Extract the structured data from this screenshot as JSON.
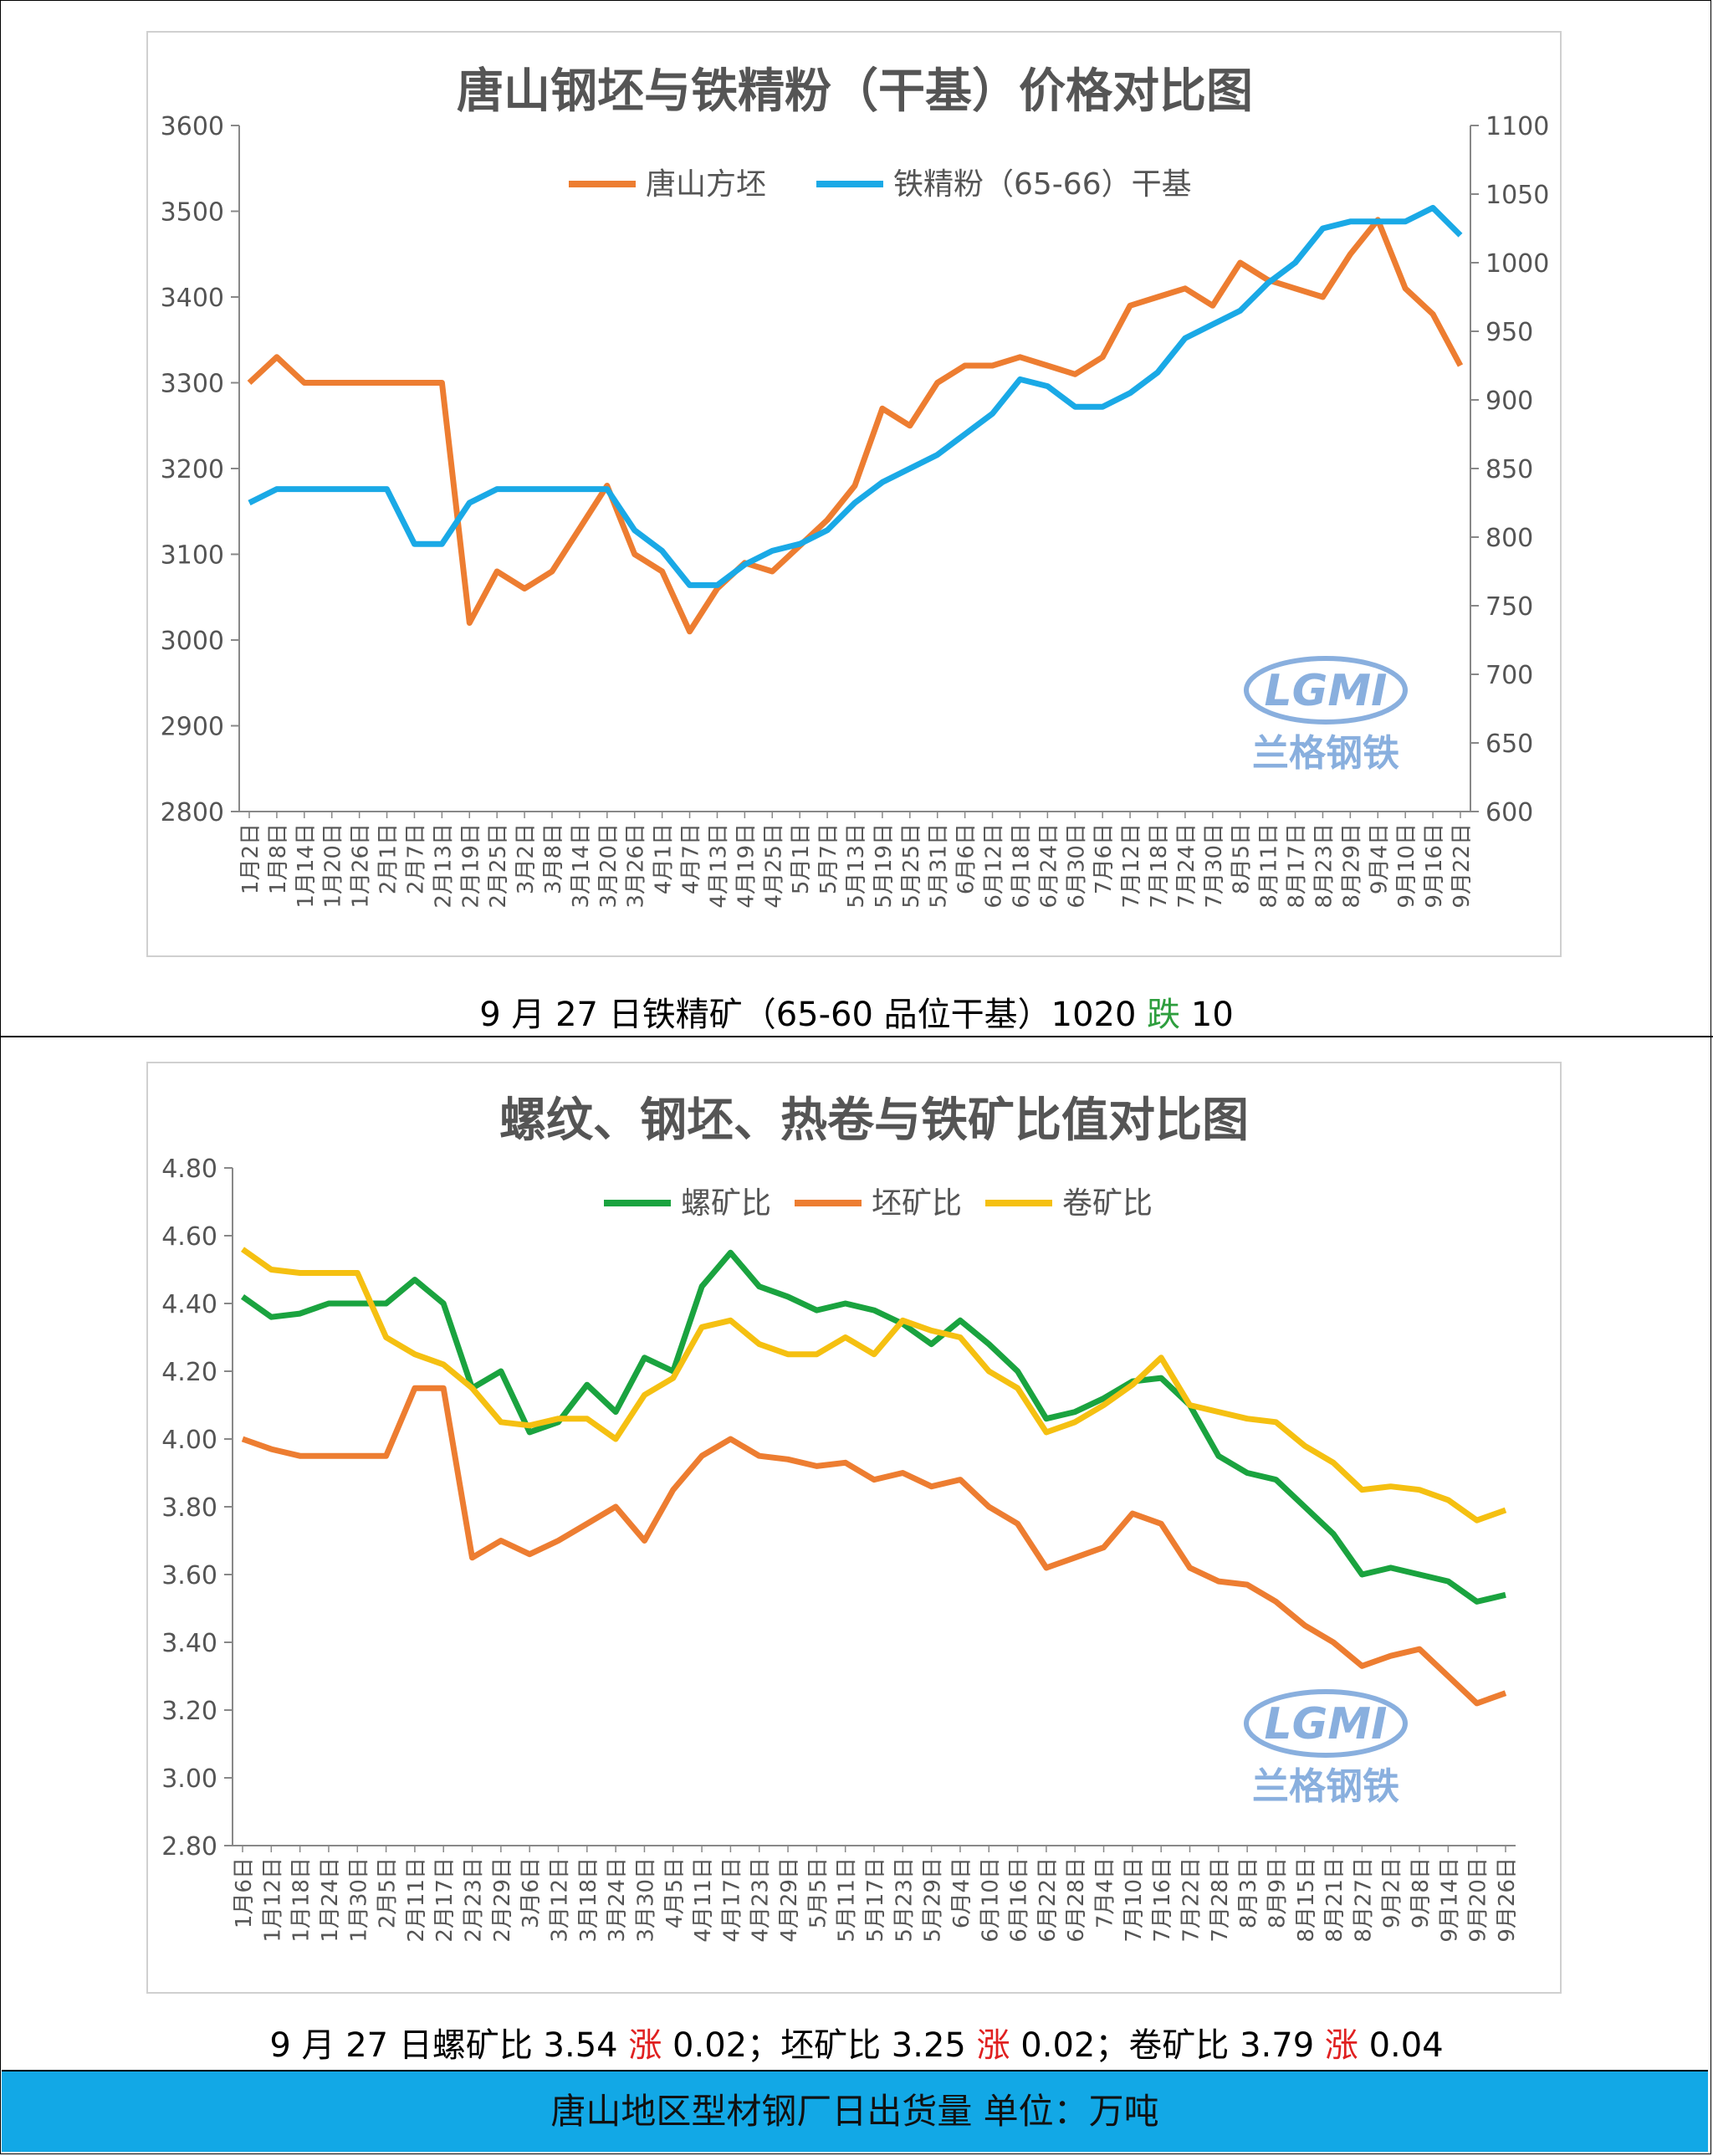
{
  "caption1": {
    "pre": "9 月 27 日铁精矿（65-60 品位干基）1020 ",
    "trend": "跌",
    "post": " 10"
  },
  "caption2": {
    "p1": "9 月 27 日螺矿比 3.54 ",
    "t1": "涨",
    "p2": " 0.02；坯矿比 3.25 ",
    "t2": "涨",
    "p3": " 0.02；卷矿比 3.79 ",
    "t3": "涨",
    "p4": " 0.04"
  },
  "footer": "唐山地区型材钢厂日出货量  单位：万吨",
  "watermark": {
    "logo": "LGMI",
    "name": "兰格钢铁"
  },
  "colors": {
    "orange": "#ed7d31",
    "blue": "#1aa9e6",
    "green": "#1aa33f",
    "yellow": "#f5c011",
    "down": "#2e9e3e",
    "up": "#e02020"
  },
  "chart_data": [
    {
      "type": "line",
      "title": "唐山钢坯与铁精粉（干基）价格对比图",
      "legend": "top",
      "x": [
        "1月2日",
        "1月8日",
        "1月14日",
        "1月20日",
        "1月26日",
        "2月1日",
        "2月7日",
        "2月13日",
        "2月19日",
        "2月25日",
        "3月2日",
        "3月8日",
        "3月14日",
        "3月20日",
        "3月26日",
        "4月1日",
        "4月7日",
        "4月13日",
        "4月19日",
        "4月25日",
        "5月1日",
        "5月7日",
        "5月13日",
        "5月19日",
        "5月25日",
        "5月31日",
        "6月6日",
        "6月12日",
        "6月18日",
        "6月24日",
        "6月30日",
        "7月6日",
        "7月12日",
        "7月18日",
        "7月24日",
        "7月30日",
        "8月5日",
        "8月11日",
        "8月17日",
        "8月23日",
        "8月29日",
        "9月4日",
        "9月10日",
        "9月16日",
        "9月22日"
      ],
      "y_left": {
        "min": 2800,
        "max": 3600,
        "ticks": [
          2800,
          2900,
          3000,
          3100,
          3200,
          3300,
          3400,
          3500,
          3600
        ]
      },
      "y_right": {
        "min": 600,
        "max": 1100,
        "ticks": [
          600,
          650,
          700,
          750,
          800,
          850,
          900,
          950,
          1000,
          1050,
          1100
        ]
      },
      "series": [
        {
          "name": "唐山方坯",
          "axis": "left",
          "color": "#ed7d31",
          "values": [
            3300,
            3330,
            3300,
            3300,
            3300,
            3300,
            3300,
            3300,
            3020,
            3080,
            3060,
            3080,
            3130,
            3180,
            3100,
            3080,
            3010,
            3060,
            3090,
            3080,
            3110,
            3140,
            3180,
            3270,
            3250,
            3300,
            3320,
            3320,
            3330,
            3320,
            3310,
            3330,
            3390,
            3400,
            3410,
            3390,
            3440,
            3420,
            3410,
            3400,
            3450,
            3490,
            3410,
            3380,
            3320
          ]
        },
        {
          "name": "铁精粉（65-66）干基",
          "axis": "right",
          "color": "#1aa9e6",
          "values": [
            825,
            835,
            835,
            835,
            835,
            835,
            795,
            795,
            825,
            835,
            835,
            835,
            835,
            835,
            805,
            790,
            765,
            765,
            780,
            790,
            795,
            805,
            825,
            840,
            850,
            860,
            875,
            890,
            915,
            910,
            895,
            895,
            905,
            920,
            945,
            955,
            965,
            985,
            1000,
            1025,
            1030,
            1030,
            1030,
            1040,
            1020
          ]
        }
      ]
    },
    {
      "type": "line",
      "title": "螺纹、钢坯、热卷与铁矿比值对比图",
      "legend": "top",
      "x": [
        "1月6日",
        "1月12日",
        "1月18日",
        "1月24日",
        "1月30日",
        "2月5日",
        "2月11日",
        "2月17日",
        "2月23日",
        "2月29日",
        "3月6日",
        "3月12日",
        "3月18日",
        "3月24日",
        "3月30日",
        "4月5日",
        "4月11日",
        "4月17日",
        "4月23日",
        "4月29日",
        "5月5日",
        "5月11日",
        "5月17日",
        "5月23日",
        "5月29日",
        "6月4日",
        "6月10日",
        "6月16日",
        "6月22日",
        "6月28日",
        "7月4日",
        "7月10日",
        "7月16日",
        "7月22日",
        "7月28日",
        "8月3日",
        "8月9日",
        "8月15日",
        "8月21日",
        "8月27日",
        "9月2日",
        "9月8日",
        "9月14日",
        "9月20日",
        "9月26日"
      ],
      "y": {
        "min": 2.8,
        "max": 4.8,
        "ticks": [
          2.8,
          3.0,
          3.2,
          3.4,
          3.6,
          3.8,
          4.0,
          4.2,
          4.4,
          4.6,
          4.8
        ]
      },
      "series": [
        {
          "name": "螺矿比",
          "color": "#1aa33f",
          "values": [
            4.42,
            4.36,
            4.37,
            4.4,
            4.4,
            4.4,
            4.47,
            4.4,
            4.15,
            4.2,
            4.02,
            4.05,
            4.16,
            4.08,
            4.24,
            4.2,
            4.45,
            4.55,
            4.45,
            4.42,
            4.38,
            4.4,
            4.38,
            4.34,
            4.28,
            4.35,
            4.28,
            4.2,
            4.06,
            4.08,
            4.12,
            4.17,
            4.18,
            4.1,
            3.95,
            3.9,
            3.88,
            3.8,
            3.72,
            3.6,
            3.62,
            3.6,
            3.58,
            3.52,
            3.54
          ]
        },
        {
          "name": "坯矿比",
          "color": "#ed7d31",
          "values": [
            4.0,
            3.97,
            3.95,
            3.95,
            3.95,
            3.95,
            4.15,
            4.15,
            3.65,
            3.7,
            3.66,
            3.7,
            3.75,
            3.8,
            3.7,
            3.85,
            3.95,
            4.0,
            3.95,
            3.94,
            3.92,
            3.93,
            3.88,
            3.9,
            3.86,
            3.88,
            3.8,
            3.75,
            3.62,
            3.65,
            3.68,
            3.78,
            3.75,
            3.62,
            3.58,
            3.57,
            3.52,
            3.45,
            3.4,
            3.33,
            3.36,
            3.38,
            3.3,
            3.22,
            3.25
          ]
        },
        {
          "name": "卷矿比",
          "color": "#f5c011",
          "values": [
            4.56,
            4.5,
            4.49,
            4.49,
            4.49,
            4.3,
            4.25,
            4.22,
            4.15,
            4.05,
            4.04,
            4.06,
            4.06,
            4.0,
            4.13,
            4.18,
            4.33,
            4.35,
            4.28,
            4.25,
            4.25,
            4.3,
            4.25,
            4.35,
            4.32,
            4.3,
            4.2,
            4.15,
            4.02,
            4.05,
            4.1,
            4.16,
            4.24,
            4.1,
            4.08,
            4.06,
            4.05,
            3.98,
            3.93,
            3.85,
            3.86,
            3.85,
            3.82,
            3.76,
            3.79
          ]
        }
      ]
    }
  ]
}
